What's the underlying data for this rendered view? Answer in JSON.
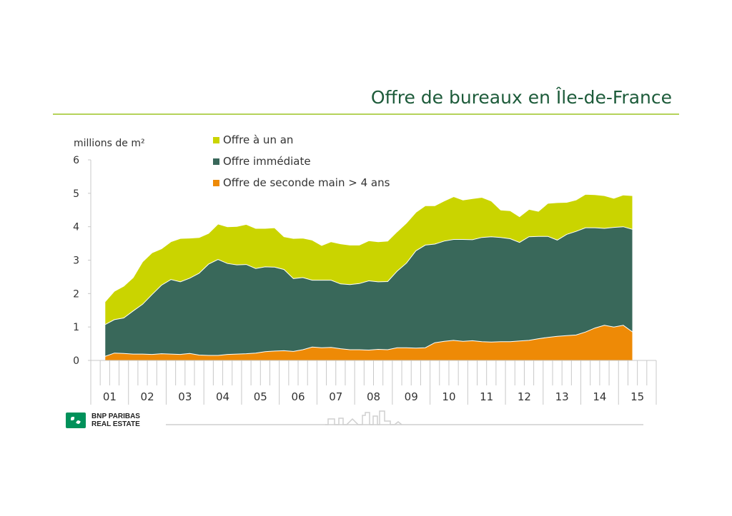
{
  "title": "Offre de bureaux en Île-de-France",
  "brand": {
    "line1": "BNP PARIBAS",
    "line2": "REAL ESTATE"
  },
  "colors": {
    "title": "#1d5b3a",
    "rule": "#b5d35a",
    "brand": "#00915a"
  },
  "chart_data": {
    "type": "area",
    "stacked": true,
    "ylabel": "millions de m²",
    "xlabel": "",
    "ylim": [
      0,
      6
    ],
    "yticks": [
      0,
      1,
      2,
      3,
      4,
      5,
      6
    ],
    "grid": false,
    "legend_position": "top-center",
    "x_period_labels": [
      "01",
      "02",
      "03",
      "04",
      "05",
      "06",
      "07",
      "08",
      "09",
      "10",
      "11",
      "12",
      "13",
      "14",
      "15"
    ],
    "quarters_per_period": 4,
    "series": [
      {
        "name": "Offre de seconde main > 4 ans",
        "color": "#ee8a06",
        "values": [
          0.12,
          0.22,
          0.21,
          0.19,
          0.19,
          0.18,
          0.2,
          0.19,
          0.18,
          0.21,
          0.16,
          0.15,
          0.15,
          0.18,
          0.19,
          0.2,
          0.22,
          0.26,
          0.28,
          0.29,
          0.27,
          0.32,
          0.4,
          0.38,
          0.39,
          0.35,
          0.32,
          0.32,
          0.31,
          0.33,
          0.32,
          0.38,
          0.38,
          0.37,
          0.38,
          0.53,
          0.57,
          0.6,
          0.57,
          0.59,
          0.56,
          0.55,
          0.56,
          0.56,
          0.58,
          0.6,
          0.65,
          0.69,
          0.72,
          0.74,
          0.76,
          0.85,
          0.97,
          1.05,
          1.0,
          1.05,
          0.85
        ]
      },
      {
        "name": "Offre immédiate",
        "color": "#39685a",
        "values": [
          0.95,
          1.0,
          1.06,
          1.29,
          1.49,
          1.79,
          2.05,
          2.23,
          2.17,
          2.25,
          2.45,
          2.73,
          2.87,
          2.72,
          2.67,
          2.67,
          2.53,
          2.54,
          2.51,
          2.43,
          2.18,
          2.16,
          2.0,
          2.02,
          2.01,
          1.94,
          1.95,
          1.98,
          2.07,
          2.02,
          2.04,
          2.29,
          2.53,
          2.91,
          3.07,
          2.95,
          3.0,
          3.02,
          3.05,
          3.02,
          3.12,
          3.15,
          3.12,
          3.08,
          2.95,
          3.1,
          3.06,
          3.02,
          2.88,
          3.03,
          3.1,
          3.12,
          3.0,
          2.9,
          2.98,
          2.95,
          3.07
        ]
      },
      {
        "name": "Offre à un an",
        "color": "#cad400",
        "values": [
          0.68,
          0.85,
          0.95,
          1.0,
          1.27,
          1.25,
          1.09,
          1.13,
          1.3,
          1.2,
          1.07,
          0.92,
          1.06,
          1.1,
          1.15,
          1.2,
          1.2,
          1.15,
          1.18,
          0.98,
          1.2,
          1.18,
          1.2,
          1.04,
          1.15,
          1.2,
          1.18,
          1.15,
          1.2,
          1.2,
          1.21,
          1.18,
          1.2,
          1.15,
          1.18,
          1.15,
          1.2,
          1.28,
          1.18,
          1.23,
          1.2,
          1.07,
          0.82,
          0.84,
          0.77,
          0.82,
          0.75,
          0.99,
          1.12,
          0.96,
          0.94,
          1.0,
          0.99,
          0.98,
          0.87,
          0.95,
          1.01
        ]
      }
    ]
  }
}
